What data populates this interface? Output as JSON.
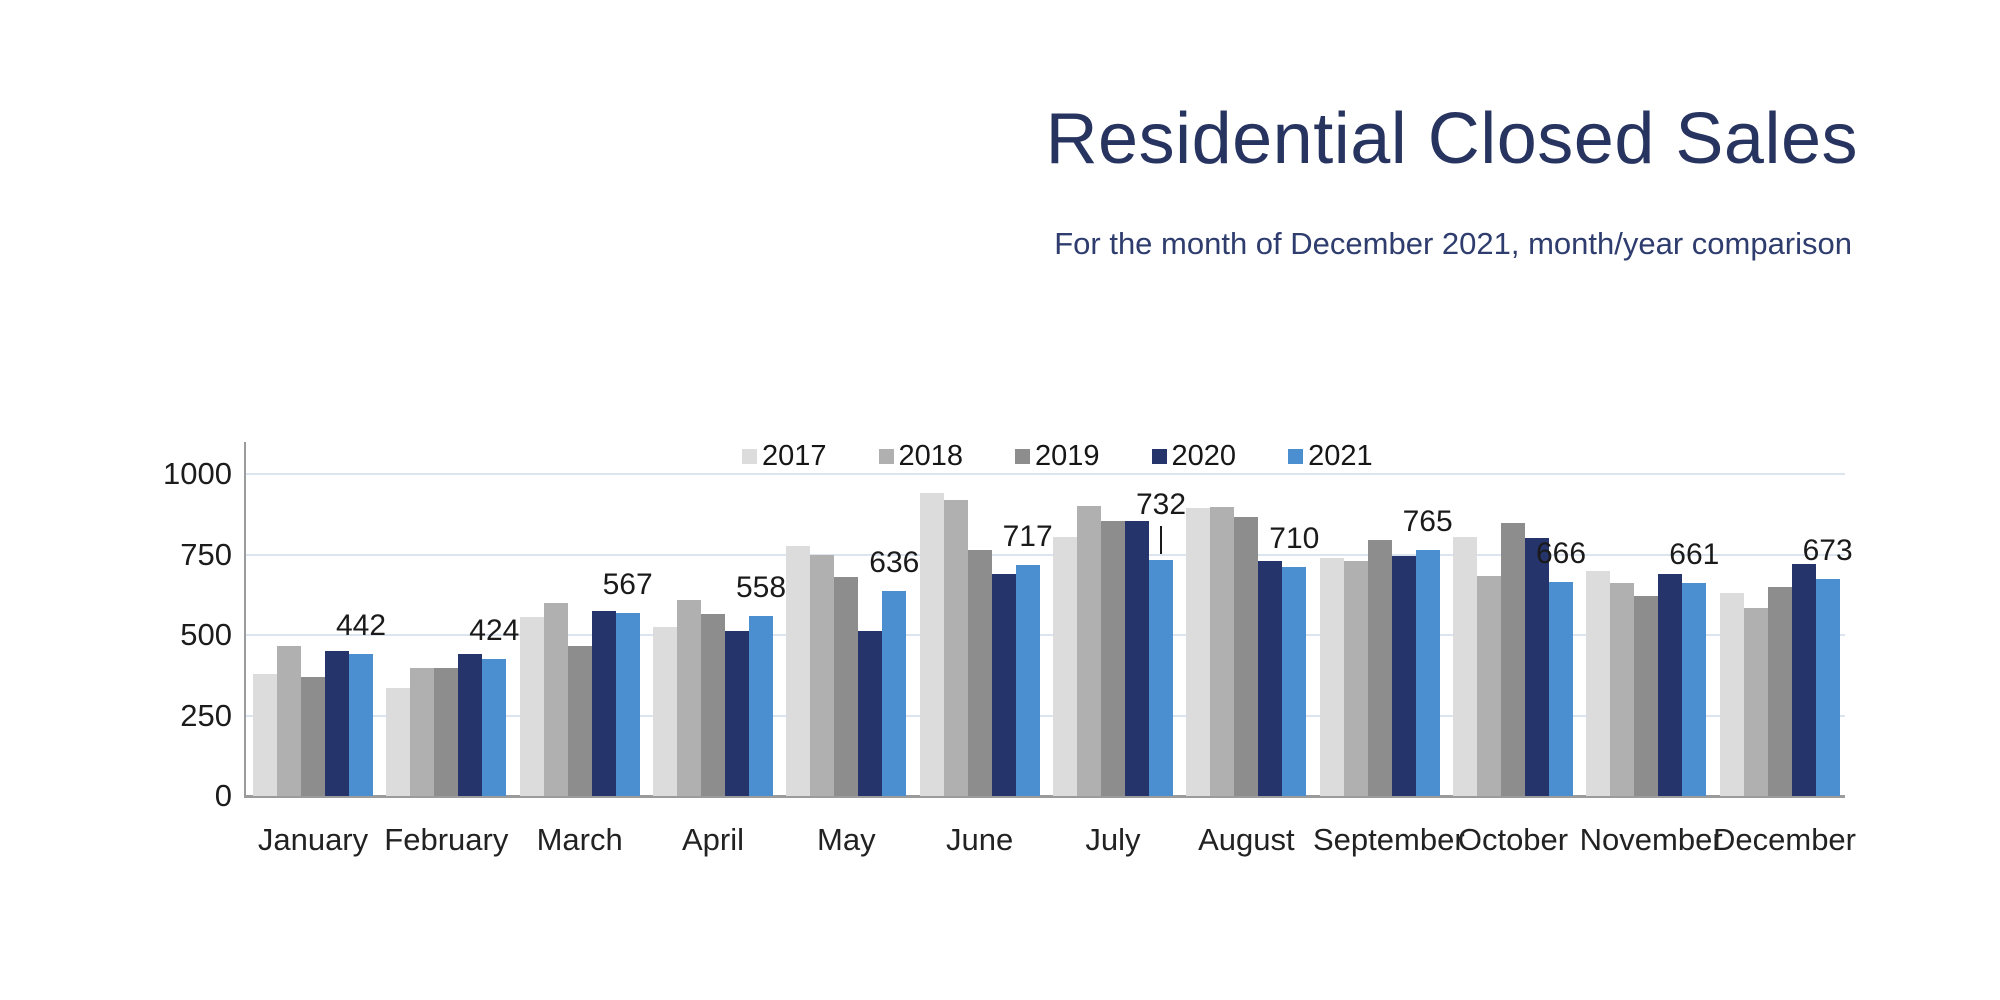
{
  "title": "Residential Closed Sales",
  "subtitle": "For the month of December 2021, month/year comparison",
  "colors": {
    "title": "#283460",
    "subtitle": "#2e3c6e",
    "axis": "#9b9b9b",
    "gridline": "#dce4ef",
    "tick_text": "#1c1c1c",
    "data_label_text": "#1a1a1a",
    "background": "#ffffff"
  },
  "chart_data": {
    "type": "bar",
    "title": "Residential Closed Sales",
    "subtitle": "For the month of December 2021, month/year comparison",
    "categories": [
      "January",
      "February",
      "March",
      "April",
      "May",
      "June",
      "July",
      "August",
      "September",
      "October",
      "November",
      "December"
    ],
    "series": [
      {
        "name": "2017",
        "color": "#dcdcdc",
        "values": [
          380,
          335,
          555,
          525,
          775,
          940,
          805,
          895,
          740,
          805,
          700,
          630
        ]
      },
      {
        "name": "2018",
        "color": "#b0b0b0",
        "values": [
          465,
          398,
          600,
          610,
          750,
          920,
          900,
          898,
          730,
          682,
          660,
          585
        ]
      },
      {
        "name": "2019",
        "color": "#8d8d8d",
        "values": [
          370,
          398,
          465,
          565,
          680,
          765,
          855,
          865,
          795,
          848,
          620,
          650
        ]
      },
      {
        "name": "2020",
        "color": "#25346a",
        "values": [
          450,
          441,
          575,
          513,
          513,
          690,
          855,
          731,
          745,
          800,
          690,
          720
        ]
      },
      {
        "name": "2021",
        "color": "#4c8fd0",
        "values": [
          442,
          424,
          567,
          558,
          636,
          717,
          732,
          710,
          765,
          666,
          661,
          673
        ]
      }
    ],
    "data_labels": {
      "on_series": "2021",
      "values": [
        442,
        424,
        567,
        558,
        636,
        717,
        732,
        710,
        765,
        666,
        661,
        673
      ],
      "callout_month": "July"
    },
    "ylabel": "",
    "xlabel": "",
    "yticks": [
      0,
      250,
      500,
      750,
      1000
    ],
    "ylim": [
      0,
      1000
    ],
    "grid": true,
    "legend_position": "top-center",
    "legend_entries": [
      "2017",
      "2018",
      "2019",
      "2020",
      "2021"
    ]
  }
}
